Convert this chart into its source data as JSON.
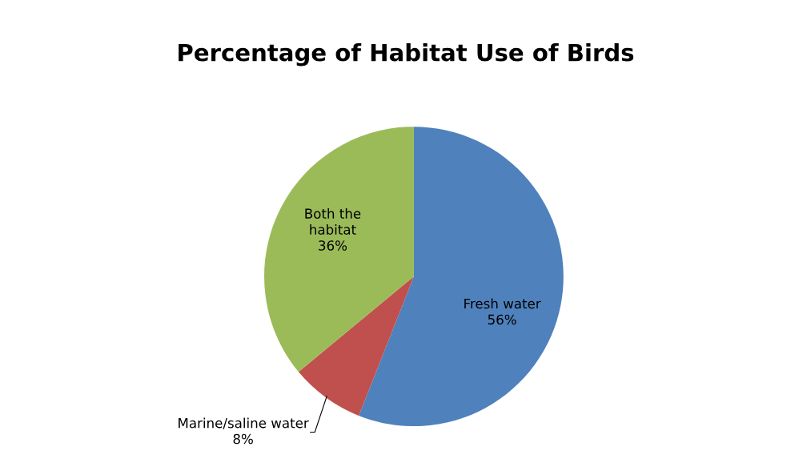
{
  "chart_data": {
    "type": "pie",
    "title": "Percentage of Habitat Use of Birds",
    "categories": [
      "Fresh water",
      "Marine/saline water",
      "Both the habitat"
    ],
    "values": [
      56,
      8,
      36
    ],
    "colors": [
      "#4f81bd",
      "#c0504d",
      "#9bbb59"
    ],
    "value_labels": [
      "56%",
      "8%",
      "36%"
    ],
    "legend": false
  }
}
